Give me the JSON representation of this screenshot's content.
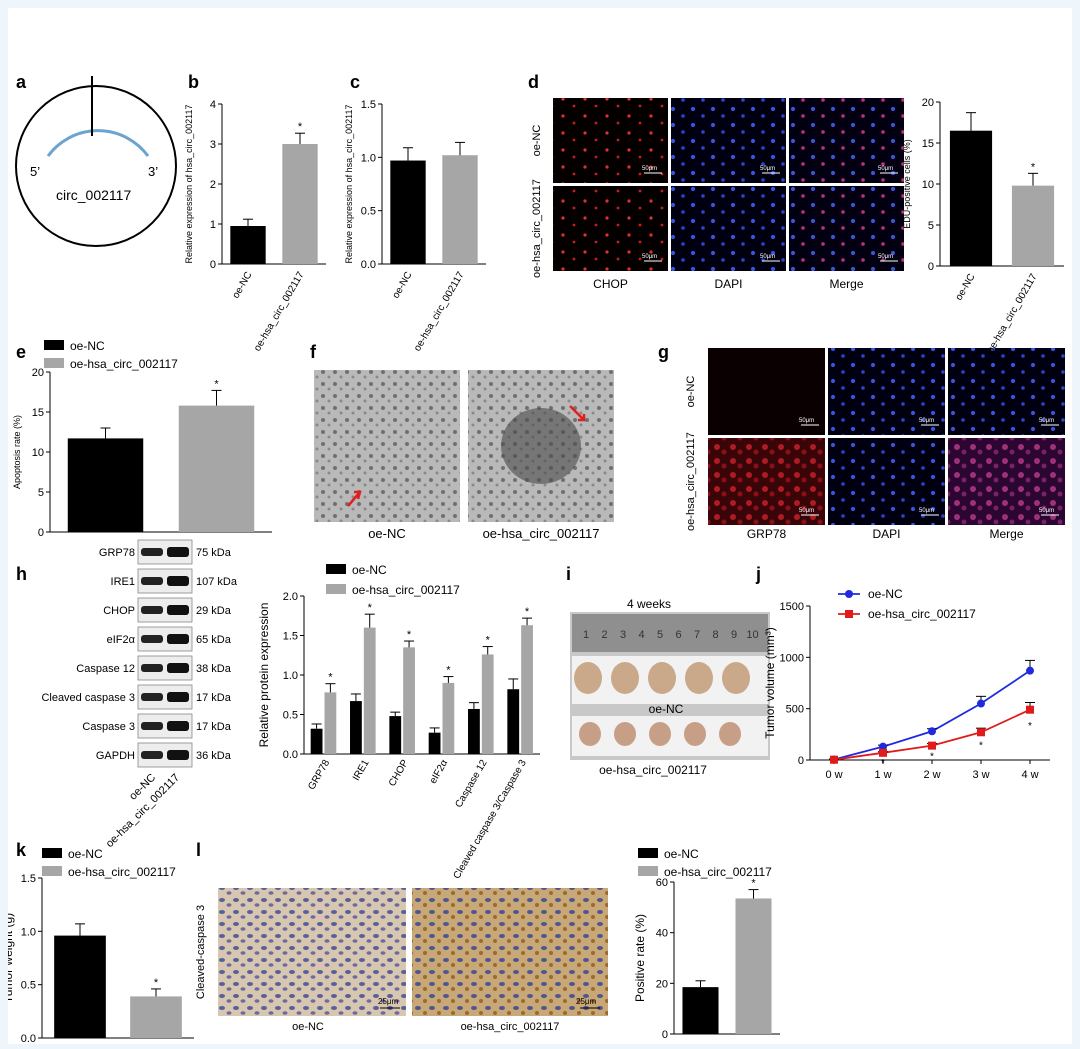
{
  "panel_labels": [
    "a",
    "b",
    "c",
    "d",
    "e",
    "f",
    "g",
    "h",
    "i",
    "j",
    "k",
    "l"
  ],
  "colors": {
    "nc": "#000000",
    "oe": "#a6a6a6",
    "blue": "#1f2ae0",
    "red": "#e01b1b"
  },
  "a": {
    "circ_label": "circ_002117",
    "five": "5’",
    "three": "3’"
  },
  "d": {
    "rows": [
      "oe-NC",
      "oe-hsa_circ_002117"
    ],
    "cols": [
      "CHOP",
      "DAPI",
      "Merge"
    ],
    "scale": "50μm"
  },
  "f": {
    "labels": [
      "oe-NC",
      "oe-hsa_circ_002117"
    ]
  },
  "g": {
    "rows": [
      "oe-NC",
      "oe-hsa_circ_002117"
    ],
    "cols": [
      "GRP78",
      "DAPI",
      "Merge"
    ],
    "scale": "50μm"
  },
  "h_blot": {
    "bands": [
      {
        "name": "GRP78",
        "kda": "75 kDa"
      },
      {
        "name": "IRE1",
        "kda": "107 kDa"
      },
      {
        "name": "CHOP",
        "kda": "29 kDa"
      },
      {
        "name": "eIF2α",
        "kda": "65 kDa"
      },
      {
        "name": "Caspase 12",
        "kda": "38 kDa"
      },
      {
        "name": "Cleaved caspase 3",
        "kda": "17 kDa"
      },
      {
        "name": "Caspase 3",
        "kda": "17 kDa"
      },
      {
        "name": "GAPDH",
        "kda": "36 kDa"
      }
    ],
    "lanes": [
      "oe-NC",
      "oe-hsa_circ_002117"
    ]
  },
  "i": {
    "title": "4 weeks",
    "ruler": [
      "1",
      "2",
      "3",
      "4",
      "5",
      "6",
      "7",
      "8",
      "9",
      "10"
    ],
    "labels": [
      "oe-NC",
      "oe-hsa_circ_002117"
    ]
  },
  "l": {
    "ylabel": "Cleaved-caspase 3",
    "labels": [
      "oe-NC",
      "oe-hsa_circ_002117"
    ],
    "scale": "25μm"
  },
  "chart_data": [
    {
      "id": "b",
      "type": "bar",
      "categories": [
        "oe-NC",
        "oe-hsa_circ_002117"
      ],
      "values": [
        0.95,
        3.0
      ],
      "errors": [
        0.17,
        0.27
      ],
      "sig": [
        "",
        "*"
      ],
      "ylabel": "Relative expression of hsa_circ_002117",
      "ylim": [
        0,
        4
      ],
      "yticks": [
        "0",
        "1",
        "2",
        "3",
        "4"
      ]
    },
    {
      "id": "c",
      "type": "bar",
      "categories": [
        "oe-NC",
        "oe-hsa_circ_002117"
      ],
      "values": [
        0.97,
        1.02
      ],
      "errors": [
        0.12,
        0.12
      ],
      "sig": [
        "",
        ""
      ],
      "ylabel": "Relative expression of hsa_circ_002117",
      "ylim": [
        0,
        1.5
      ],
      "yticks": [
        "0.0",
        "0.5",
        "1.0",
        "1.5"
      ]
    },
    {
      "id": "d",
      "type": "bar",
      "categories": [
        "oe-NC",
        "oe-hsa_circ_002117"
      ],
      "values": [
        16.5,
        9.8
      ],
      "errors": [
        2.2,
        1.5
      ],
      "sig": [
        "",
        "*"
      ],
      "ylabel": "EDU-positive cells (%)",
      "ylim": [
        0,
        20
      ],
      "yticks": [
        "0",
        "5",
        "10",
        "15",
        "20"
      ]
    },
    {
      "id": "e",
      "type": "bar",
      "categories": [
        "oe-NC",
        "oe-hsa_circ_002117"
      ],
      "values": [
        11.7,
        15.8
      ],
      "errors": [
        1.3,
        1.9
      ],
      "sig": [
        "",
        "*"
      ],
      "ylabel": "Apoptosis rate (%)",
      "ylim": [
        0,
        20
      ],
      "yticks": [
        "0",
        "5",
        "10",
        "15",
        "20"
      ],
      "legend": [
        "oe-NC",
        "oe-hsa_circ_002117"
      ]
    },
    {
      "id": "h",
      "type": "bar",
      "categories": [
        "GRP78",
        "IRE1",
        "CHOP",
        "eIF2α",
        "Caspase 12",
        "Cleaved caspase 3/Caspase 3"
      ],
      "series": [
        {
          "name": "oe-NC",
          "values": [
            0.32,
            0.67,
            0.48,
            0.27,
            0.57,
            0.82
          ],
          "errors": [
            0.06,
            0.09,
            0.05,
            0.06,
            0.08,
            0.13
          ]
        },
        {
          "name": "oe-hsa_circ_002117",
          "values": [
            0.78,
            1.6,
            1.35,
            0.9,
            1.26,
            1.63
          ],
          "errors": [
            0.11,
            0.17,
            0.08,
            0.08,
            0.1,
            0.09
          ]
        }
      ],
      "sig": [
        "*",
        "*",
        "*",
        "*",
        "*",
        "*"
      ],
      "ylabel": "Relative protein expression",
      "ylim": [
        0,
        2.0
      ],
      "yticks": [
        "0.0",
        "0.5",
        "1.0",
        "1.5",
        "2.0"
      ]
    },
    {
      "id": "j",
      "type": "line",
      "x": [
        "0 w",
        "1 w",
        "2 w",
        "3 w",
        "4 w"
      ],
      "series": [
        {
          "name": "oe-NC",
          "values": [
            5,
            130,
            280,
            550,
            870
          ],
          "errors": [
            5,
            15,
            25,
            70,
            100
          ]
        },
        {
          "name": "oe-hsa_circ_002117",
          "values": [
            3,
            70,
            140,
            270,
            490
          ],
          "errors": [
            3,
            10,
            20,
            40,
            70
          ]
        }
      ],
      "sig": [
        "",
        "*",
        "*",
        "*",
        "*"
      ],
      "ylabel": "Tumor volume (mm³)",
      "ylim": [
        0,
        1500
      ],
      "yticks": [
        "0",
        "500",
        "1000",
        "1500"
      ]
    },
    {
      "id": "k",
      "type": "bar",
      "categories": [
        "oe-NC",
        "oe-hsa_circ_002117"
      ],
      "values": [
        0.96,
        0.39
      ],
      "errors": [
        0.11,
        0.07
      ],
      "sig": [
        "",
        "*"
      ],
      "ylabel": "Tumor weight (g)",
      "ylim": [
        0,
        1.5
      ],
      "yticks": [
        "0.0",
        "0.5",
        "1.0",
        "1.5"
      ],
      "legend": [
        "oe-NC",
        "oe-hsa_circ_002117"
      ]
    },
    {
      "id": "l",
      "type": "bar",
      "categories": [
        "oe-NC",
        "oe-hsa_circ_002117"
      ],
      "values": [
        18.5,
        53.5
      ],
      "errors": [
        2.5,
        3.5
      ],
      "sig": [
        "",
        "*"
      ],
      "ylabel": "Positive rate (%)",
      "ylim": [
        0,
        60
      ],
      "yticks": [
        "0",
        "20",
        "40",
        "60"
      ],
      "legend": [
        "oe-NC",
        "oe-hsa_circ_002117"
      ]
    }
  ]
}
